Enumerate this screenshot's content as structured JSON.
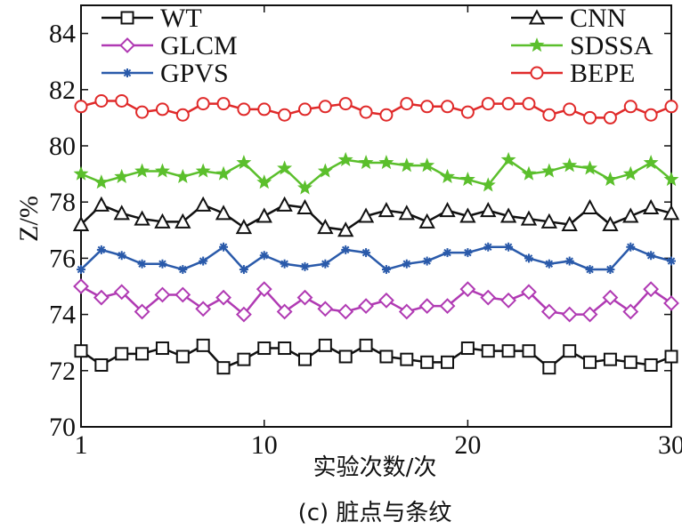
{
  "chart_data": {
    "type": "line",
    "ylabel": "Z/%",
    "xlabel": "实验次数/次",
    "caption": "(c) 脏点与条纹",
    "xlim": [
      1,
      30
    ],
    "ylim": [
      70,
      85
    ],
    "xticks": [
      1,
      10,
      20,
      30
    ],
    "yticks": [
      70,
      72,
      74,
      76,
      78,
      80,
      82,
      84
    ],
    "grid": false,
    "legend_placement": "top (two columns)",
    "x": [
      1,
      2,
      3,
      4,
      5,
      6,
      7,
      8,
      9,
      10,
      11,
      12,
      13,
      14,
      15,
      16,
      17,
      18,
      19,
      20,
      21,
      22,
      23,
      24,
      25,
      26,
      27,
      28,
      29,
      30
    ],
    "series": [
      {
        "name": "WT",
        "color": "#111111",
        "marker": "square",
        "values": [
          72.7,
          72.2,
          72.6,
          72.6,
          72.8,
          72.5,
          72.9,
          72.1,
          72.4,
          72.8,
          72.8,
          72.4,
          72.9,
          72.5,
          72.9,
          72.5,
          72.4,
          72.3,
          72.3,
          72.8,
          72.7,
          72.7,
          72.7,
          72.1,
          72.7,
          72.3,
          72.4,
          72.3,
          72.2,
          72.5
        ]
      },
      {
        "name": "CNN",
        "color": "#111111",
        "marker": "triangle",
        "values": [
          77.2,
          77.9,
          77.6,
          77.4,
          77.3,
          77.3,
          77.9,
          77.6,
          77.1,
          77.5,
          77.9,
          77.8,
          77.1,
          77.0,
          77.5,
          77.7,
          77.6,
          77.3,
          77.7,
          77.5,
          77.7,
          77.5,
          77.4,
          77.3,
          77.2,
          77.8,
          77.2,
          77.5,
          77.8,
          77.6
        ]
      },
      {
        "name": "GLCM",
        "color": "#b03ab3",
        "marker": "diamond",
        "values": [
          75.0,
          74.6,
          74.8,
          74.1,
          74.7,
          74.7,
          74.2,
          74.6,
          74.0,
          74.9,
          74.1,
          74.6,
          74.2,
          74.1,
          74.3,
          74.5,
          74.1,
          74.3,
          74.3,
          74.9,
          74.6,
          74.5,
          74.8,
          74.1,
          74.0,
          74.0,
          74.6,
          74.1,
          74.9,
          74.4
        ]
      },
      {
        "name": "SDSSA",
        "color": "#5bbf2c",
        "marker": "star",
        "values": [
          79.0,
          78.7,
          78.9,
          79.1,
          79.1,
          78.9,
          79.1,
          79.0,
          79.4,
          78.7,
          79.2,
          78.5,
          79.1,
          79.5,
          79.4,
          79.4,
          79.3,
          79.3,
          78.9,
          78.8,
          78.6,
          79.5,
          79.0,
          79.1,
          79.3,
          79.2,
          78.8,
          79.0,
          79.4,
          78.8
        ]
      },
      {
        "name": "GPVS",
        "color": "#2a5aaa",
        "marker": "asterisk",
        "values": [
          75.6,
          76.3,
          76.1,
          75.8,
          75.8,
          75.6,
          75.9,
          76.4,
          75.6,
          76.1,
          75.8,
          75.7,
          75.8,
          76.3,
          76.2,
          75.6,
          75.8,
          75.9,
          76.2,
          76.2,
          76.4,
          76.4,
          76.0,
          75.8,
          75.9,
          75.6,
          75.6,
          76.4,
          76.1,
          75.9
        ]
      },
      {
        "name": "BEPE",
        "color": "#e02a2a",
        "marker": "circle",
        "values": [
          81.4,
          81.6,
          81.6,
          81.2,
          81.3,
          81.1,
          81.5,
          81.5,
          81.3,
          81.3,
          81.1,
          81.3,
          81.4,
          81.5,
          81.2,
          81.1,
          81.5,
          81.4,
          81.4,
          81.2,
          81.5,
          81.5,
          81.5,
          81.1,
          81.3,
          81.0,
          81.0,
          81.4,
          81.1,
          81.4
        ]
      }
    ]
  }
}
